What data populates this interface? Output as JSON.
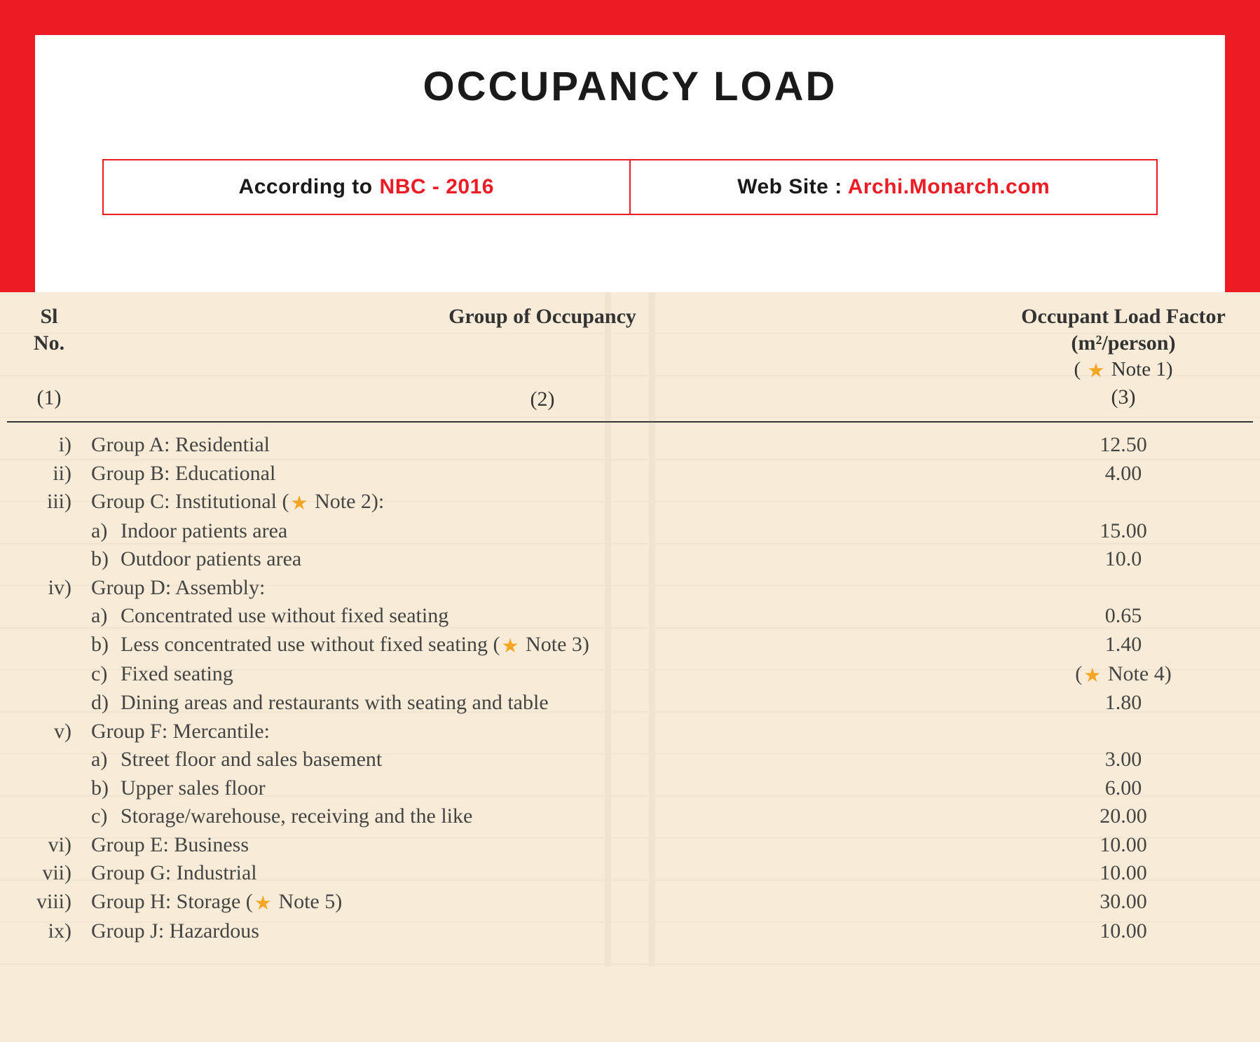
{
  "header": {
    "title": "OCCUPANCY LOAD",
    "sub_left_black": "According to",
    "sub_left_red": "NBC - 2016",
    "sub_right_black": "Web Site :",
    "sub_right_red": "Archi.Monarch.com",
    "border_color": "#ed1c24",
    "title_fontsize": 58
  },
  "table": {
    "background_color": "#f8ecd8",
    "text_color": "#444444",
    "fontsize": 30,
    "columns": {
      "sl": {
        "label_line1": "Sl",
        "label_line2": "No.",
        "num": "(1)"
      },
      "group": {
        "label": "Group of Occupancy",
        "num": "(2)"
      },
      "factor": {
        "label_line1": "Occupant Load Factor",
        "label_line2": "(m²/person)",
        "note_ref": "Note 1",
        "num": "(3)"
      }
    },
    "rows": [
      {
        "sl": "i)",
        "group": "Group A: Residential",
        "factor": "12.50"
      },
      {
        "sl": "ii)",
        "group": "Group B: Educational",
        "factor": "4.00"
      },
      {
        "sl": "iii)",
        "group_pre": "Group C: Institutional (",
        "note_ref": "Note 2",
        "group_post": "):",
        "subs": [
          {
            "letter": "a)",
            "text": "Indoor patients area",
            "factor": "15.00"
          },
          {
            "letter": "b)",
            "text": "Outdoor patients area",
            "factor": "10.0"
          }
        ]
      },
      {
        "sl": "iv)",
        "group": "Group D: Assembly:",
        "subs": [
          {
            "letter": "a)",
            "text": "Concentrated use without fixed seating",
            "factor": "0.65"
          },
          {
            "letter": "b)",
            "text_pre": "Less concentrated use without fixed seating (",
            "note_ref": "Note 3",
            "text_post": ")",
            "factor": "1.40"
          },
          {
            "letter": "c)",
            "text": "Fixed seating",
            "factor_pre": "(",
            "factor_note_ref": "Note 4",
            "factor_post": ")"
          },
          {
            "letter": "d)",
            "text": "Dining areas and restaurants with seating and table",
            "factor": "1.80"
          }
        ]
      },
      {
        "sl": "v)",
        "group": "Group F: Mercantile:",
        "subs": [
          {
            "letter": "a)",
            "text": "Street floor and sales basement",
            "factor": "3.00"
          },
          {
            "letter": "b)",
            "text": "Upper sales floor",
            "factor": "6.00"
          },
          {
            "letter": "c)",
            "text": "Storage/warehouse, receiving and the like",
            "factor": "20.00"
          }
        ]
      },
      {
        "sl": "vi)",
        "group": "Group E: Business",
        "factor": "10.00"
      },
      {
        "sl": "vii)",
        "group": "Group G: Industrial",
        "factor": "10.00"
      },
      {
        "sl": "viii)",
        "group_pre": "Group H: Storage (",
        "note_ref": "Note 5",
        "group_post": ")",
        "factor": "30.00"
      },
      {
        "sl": "ix)",
        "group": "Group J: Hazardous",
        "factor": "10.00"
      }
    ],
    "star_color": "#f5a623"
  }
}
